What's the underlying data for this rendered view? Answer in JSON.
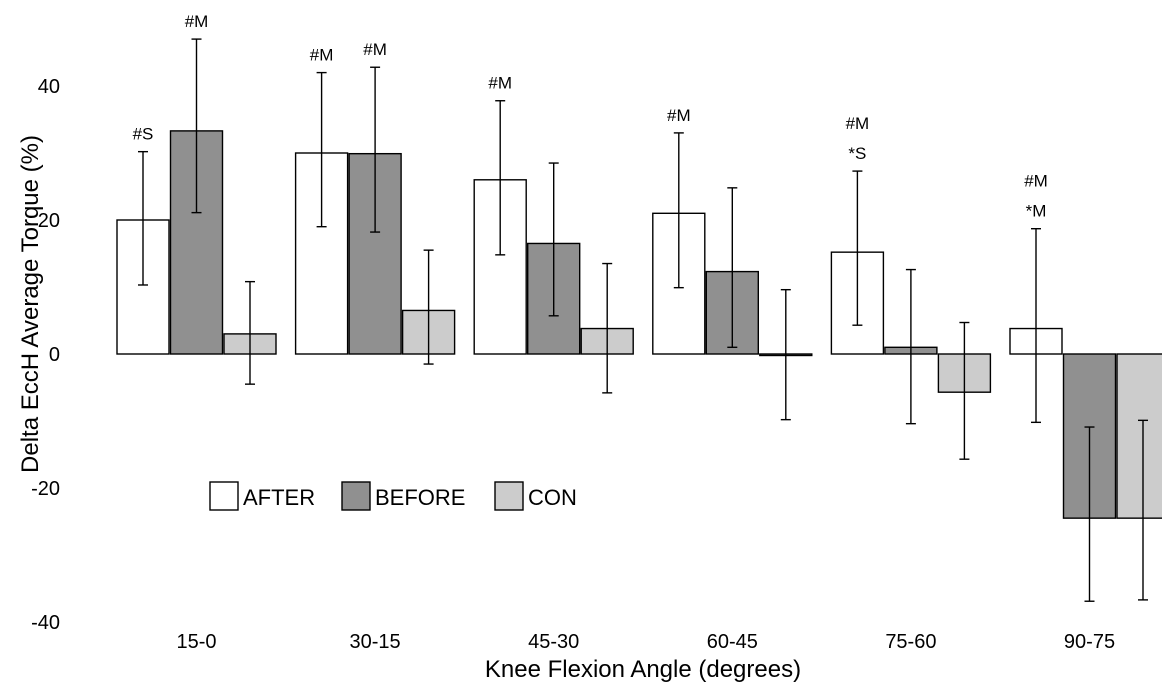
{
  "chart_data": {
    "type": "bar",
    "title": "",
    "xlabel": "Knee Flexion Angle (degrees)",
    "ylabel": "Delta EccH Average Torque (%)",
    "ylim": [
      -40,
      45
    ],
    "yticks": [
      -40,
      -20,
      0,
      20,
      40
    ],
    "grid": false,
    "legend_position": "lower-left",
    "categories": [
      "15-0",
      "30-15",
      "45-30",
      "60-45",
      "75-60",
      "90-75"
    ],
    "series": [
      {
        "name": "AFTER",
        "color": "#ffffff",
        "values": [
          20.0,
          30.0,
          26.0,
          21.0,
          15.2,
          3.8
        ],
        "err_low": [
          10.3,
          19.0,
          14.8,
          9.9,
          4.3,
          -10.2
        ],
        "err_high": [
          30.2,
          42.0,
          37.8,
          33.0,
          27.3,
          18.7
        ]
      },
      {
        "name": "BEFORE",
        "color": "#909090",
        "values": [
          33.3,
          29.9,
          16.5,
          12.3,
          1.0,
          -24.5
        ],
        "err_low": [
          21.1,
          18.2,
          5.7,
          1.0,
          -10.4,
          -36.9
        ],
        "err_high": [
          47.0,
          42.8,
          28.5,
          24.8,
          12.6,
          -10.9
        ]
      },
      {
        "name": "CON",
        "color": "#cccccc",
        "values": [
          3.0,
          6.5,
          3.8,
          0.0,
          -5.7,
          -24.5
        ],
        "err_low": [
          -4.5,
          -1.5,
          -5.8,
          -9.8,
          -15.7,
          -36.7
        ],
        "err_high": [
          10.8,
          15.5,
          13.5,
          9.6,
          4.7,
          -9.9
        ]
      }
    ],
    "annotations": [
      {
        "category": "15-0",
        "series": "AFTER",
        "lines": [
          "#S"
        ]
      },
      {
        "category": "15-0",
        "series": "BEFORE",
        "lines": [
          "#M"
        ]
      },
      {
        "category": "30-15",
        "series": "AFTER",
        "lines": [
          "#M"
        ]
      },
      {
        "category": "30-15",
        "series": "BEFORE",
        "lines": [
          "#M"
        ]
      },
      {
        "category": "45-30",
        "series": "AFTER",
        "lines": [
          "#M"
        ]
      },
      {
        "category": "60-45",
        "series": "AFTER",
        "lines": [
          "#M"
        ]
      },
      {
        "category": "75-60",
        "series": "AFTER",
        "lines": [
          "#M",
          "*S"
        ]
      },
      {
        "category": "90-75",
        "series": "AFTER",
        "lines": [
          "#M",
          "*M"
        ]
      }
    ]
  }
}
